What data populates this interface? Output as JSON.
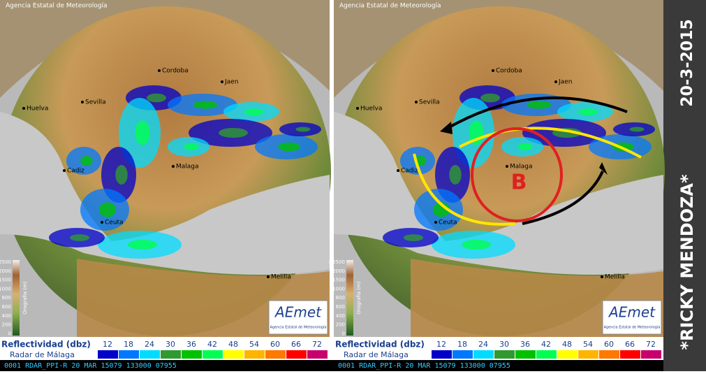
{
  "panels": [
    {
      "copyright": "Agencia Estatal de Meteorología",
      "cities": [
        "Cordoba",
        "Jaen",
        "Huelva",
        "Sevilla",
        "Cadiz",
        "Malaga",
        "Ceuta",
        "Melilla"
      ]
    },
    {
      "copyright": "Agencia Estatal de Meteorología",
      "cities": [
        "Cordoba",
        "Jaen",
        "Huelva",
        "Sevilla",
        "Cadiz",
        "Malaga",
        "Ceuta",
        "Melilla"
      ],
      "annotation": "B"
    }
  ],
  "orography": {
    "title": "Orografia (m)",
    "labels": [
      ">2500",
      "2000",
      "1500",
      "1000",
      "800",
      "600",
      "400",
      "200",
      "0"
    ]
  },
  "logo": {
    "name": "AEmet",
    "subtitle": "Agencia Estatal de Meteorología"
  },
  "legend": {
    "title": "Reflectividad (dbz)",
    "subtitle": "Radar de Málaga",
    "values": [
      12,
      18,
      24,
      30,
      36,
      42,
      48,
      54,
      60,
      66,
      72
    ],
    "colors": [
      "#0000c8",
      "#0078ff",
      "#00dcff",
      "#2f9a2f",
      "#00c000",
      "#00ff50",
      "#ffff00",
      "#ffb400",
      "#ff7800",
      "#ff0000",
      "#c8006e"
    ]
  },
  "status": "0001  RDAR_PPI-R    20 MAR  15079  133000  07955",
  "side": {
    "date": "20-3-2015",
    "author": "*RICKY MENDOZA*"
  }
}
